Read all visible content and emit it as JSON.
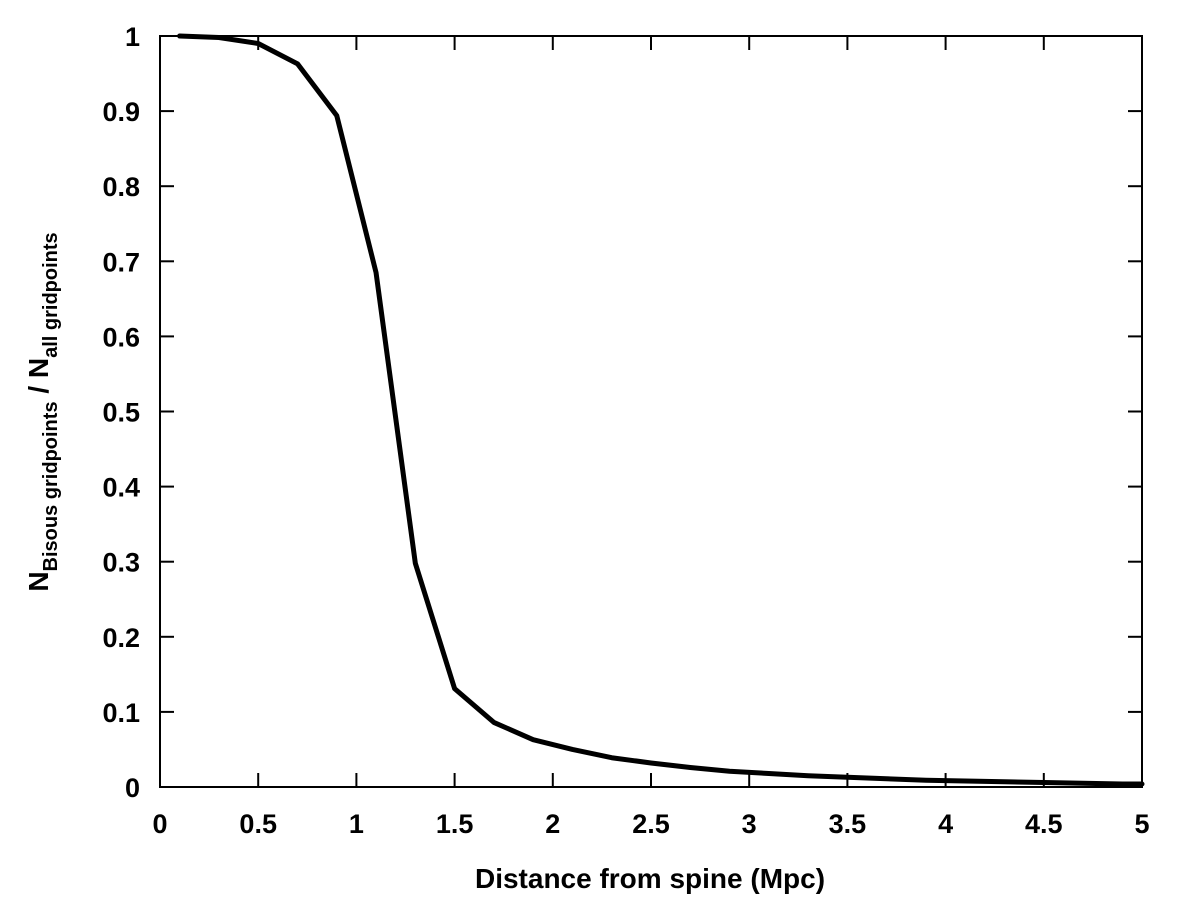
{
  "chart_data": {
    "type": "line",
    "title": "",
    "xlabel": "Distance from spine (Mpc)",
    "ylabel": {
      "base1": "N",
      "sub1": "Bisous gridpoints",
      "mid": " / N",
      "sub2": "all gridpoints"
    },
    "xlim": [
      0,
      5
    ],
    "ylim": [
      0,
      1
    ],
    "xticks": [
      0,
      0.5,
      1,
      1.5,
      2,
      2.5,
      3,
      3.5,
      4,
      4.5,
      5
    ],
    "xtick_labels": [
      "0",
      "0.5",
      "1",
      "1.5",
      "2",
      "2.5",
      "3",
      "3.5",
      "4",
      "4.5",
      "5"
    ],
    "yticks": [
      0,
      0.1,
      0.2,
      0.3,
      0.4,
      0.5,
      0.6,
      0.7,
      0.8,
      0.9,
      1
    ],
    "ytick_labels": [
      "0",
      "0.1",
      "0.2",
      "0.3",
      "0.4",
      "0.5",
      "0.6",
      "0.7",
      "0.8",
      "0.9",
      "1"
    ],
    "grid": false,
    "legend": "none",
    "line_color": "#000000",
    "series": [
      {
        "x": [
          0.1,
          0.3,
          0.5,
          0.7,
          0.9,
          1.1,
          1.3,
          1.5,
          1.7,
          1.9,
          2.1,
          2.3,
          2.5,
          2.7,
          2.9,
          3.1,
          3.3,
          3.5,
          3.7,
          3.9,
          4.1,
          4.3,
          4.5,
          4.7,
          4.9,
          5.0
        ],
        "y": [
          1.0,
          0.998,
          0.99,
          0.963,
          0.894,
          0.685,
          0.298,
          0.131,
          0.086,
          0.063,
          0.05,
          0.039,
          0.032,
          0.026,
          0.021,
          0.018,
          0.015,
          0.013,
          0.011,
          0.009,
          0.008,
          0.007,
          0.006,
          0.005,
          0.004,
          0.004
        ]
      }
    ]
  }
}
